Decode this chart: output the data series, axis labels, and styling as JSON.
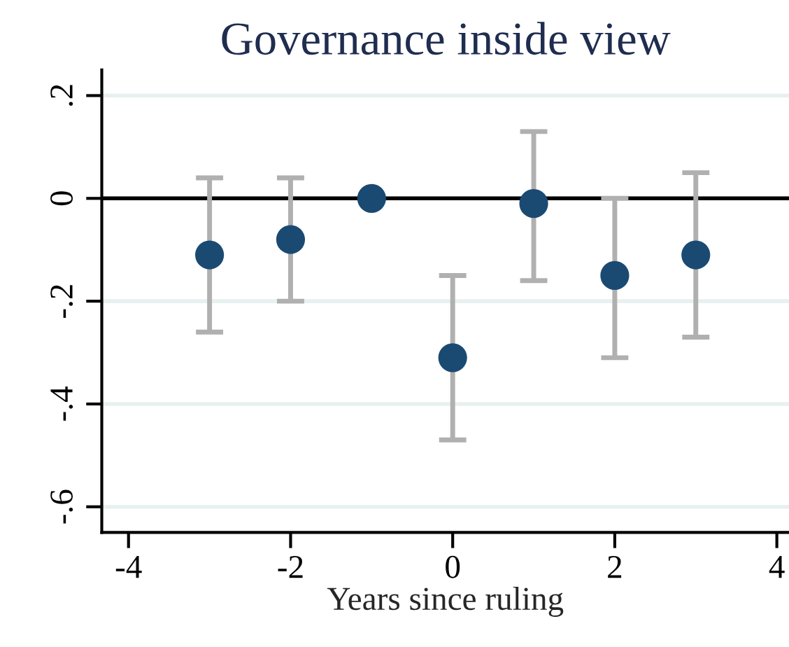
{
  "chart_data": {
    "type": "scatter",
    "title": "Governance inside view",
    "xlabel": "Years since ruling",
    "x": [
      -3,
      -2,
      -1,
      0,
      1,
      2,
      3
    ],
    "series": [
      {
        "color": "#1a4a72",
        "values": [
          -0.11,
          -0.08,
          0,
          -0.31,
          -0.01,
          -0.15,
          -0.11
        ],
        "errors": [
          [
            -0.26,
            0.04
          ],
          [
            -0.2,
            0.04
          ],
          null,
          [
            -0.47,
            -0.15
          ],
          [
            -0.16,
            0.13
          ],
          [
            -0.31,
            0.0
          ],
          [
            -0.27,
            0.05
          ]
        ]
      }
    ],
    "xlim": [
      -4.33,
      4.15
    ],
    "ylim": [
      -0.65,
      0.25
    ],
    "xticks": [
      -4,
      -2,
      0,
      2,
      4
    ],
    "yticks": [
      {
        "value": -0.6,
        "label": "-.6"
      },
      {
        "value": -0.4,
        "label": "-.4"
      },
      {
        "value": -0.2,
        "label": "-.2"
      },
      0,
      {
        "value": 0.2,
        "label": ".2"
      }
    ],
    "ref_lines": [
      {
        "axis": "y",
        "value": 0,
        "color": "#000000"
      }
    ],
    "grid": "y",
    "marker": "circle",
    "legend": false
  }
}
